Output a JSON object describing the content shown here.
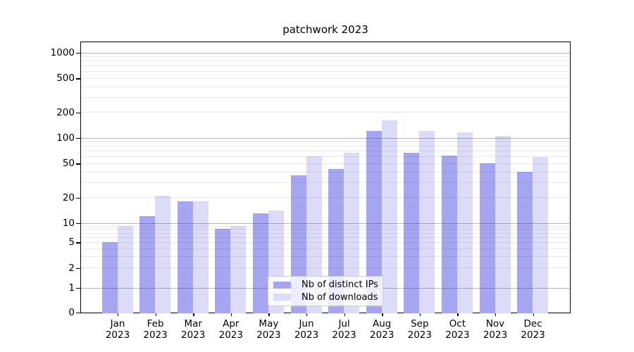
{
  "title": "patchwork 2023",
  "chart_data": {
    "type": "bar",
    "title": "patchwork 2023",
    "categories": [
      "Jan 2023",
      "Feb 2023",
      "Mar 2023",
      "Apr 2023",
      "May 2023",
      "Jun 2023",
      "Jul 2023",
      "Aug 2023",
      "Sep 2023",
      "Oct 2023",
      "Nov 2023",
      "Dec 2023"
    ],
    "x_tick_month": [
      "Jan",
      "Feb",
      "Mar",
      "Apr",
      "May",
      "Jun",
      "Jul",
      "Aug",
      "Sep",
      "Oct",
      "Nov",
      "Dec"
    ],
    "x_tick_year": "2023",
    "series": [
      {
        "name": "Nb of distinct IPs",
        "color": "#a5a5f1",
        "values": [
          5,
          12,
          18,
          8,
          13,
          36,
          43,
          120,
          66,
          62,
          50,
          40
        ]
      },
      {
        "name": "Nb of downloads",
        "color": "#dcdcf9",
        "values": [
          9,
          21,
          18,
          9,
          14,
          61,
          67,
          160,
          120,
          115,
          105,
          59
        ]
      }
    ],
    "yscale": "symlog",
    "y_ticks": [
      1000,
      500,
      200,
      100,
      50,
      20,
      10,
      5,
      2,
      1,
      0
    ],
    "ylim": [
      0,
      1330
    ],
    "grid": "on",
    "legend_position": "lower center",
    "colors": {
      "bar_distinct_ips": "#a5a5f1",
      "bar_downloads": "#dcdcf9",
      "major_grid": "#9b9b9b",
      "minor_grid": "#e8e8e8",
      "axis": "#000000",
      "background": "#ffffff"
    }
  }
}
